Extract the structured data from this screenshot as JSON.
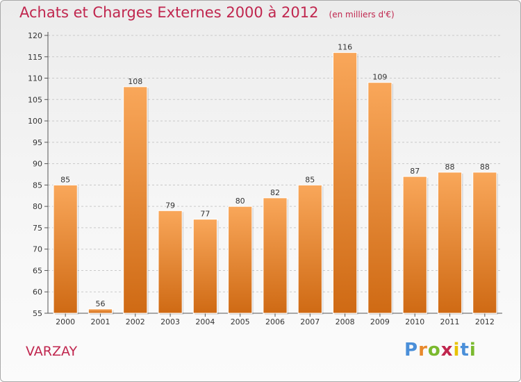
{
  "title": "Achats et Charges Externes 2000 à 2012",
  "unit_note": "(en milliers d'€)",
  "place": "VARZAY",
  "logo": {
    "text": "Proxiti",
    "letters": [
      "P",
      "r",
      "o",
      "x",
      "i",
      "t",
      "i"
    ]
  },
  "colors": {
    "title": "#c0264e",
    "bar_top": "#f9a75a",
    "bar_bottom": "#cf6a14"
  },
  "chart_data": {
    "type": "bar",
    "title": "Achats et Charges Externes 2000 à 2012",
    "subtitle": "(en milliers d'€)",
    "xlabel": "",
    "ylabel": "",
    "categories": [
      "2000",
      "2001",
      "2002",
      "2003",
      "2004",
      "2005",
      "2006",
      "2007",
      "2008",
      "2009",
      "2010",
      "2011",
      "2012"
    ],
    "values": [
      85,
      56,
      108,
      79,
      77,
      80,
      82,
      85,
      116,
      109,
      87,
      88,
      88
    ],
    "ylim": [
      55,
      120
    ],
    "yticks": [
      55,
      60,
      65,
      70,
      75,
      80,
      85,
      90,
      95,
      100,
      105,
      110,
      115,
      120
    ],
    "grid": "horizontal dashed",
    "legend": "none"
  }
}
